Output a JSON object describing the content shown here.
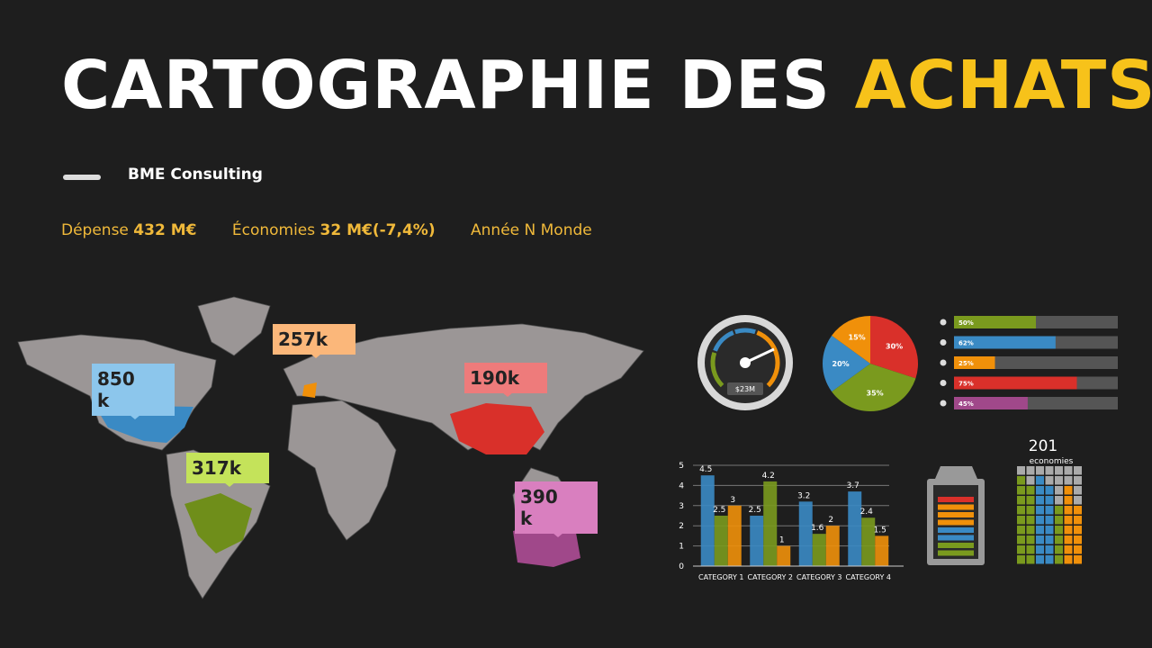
{
  "header": {
    "title_main": "CARTOGRAPHIE DES",
    "title_accent": "ACHATS",
    "company": "BME Consulting"
  },
  "kpis": [
    {
      "label": "Dépense",
      "value": "432 M€"
    },
    {
      "label": "Économies",
      "value": "32 M€(-7,4%)"
    },
    {
      "label": "Année N Monde"
    }
  ],
  "map": {
    "callouts": [
      {
        "label": "850 k",
        "color": "#8cc6ec"
      },
      {
        "label": "257k",
        "color": "#fbb77a"
      },
      {
        "label": "190k",
        "color": "#ee7b7b"
      },
      {
        "label": "317k",
        "color": "#c4e35a"
      },
      {
        "label": "390 k",
        "color": "#d97fbf"
      }
    ]
  },
  "gauge": {
    "label": "$23M"
  },
  "waffle": {
    "title": "201",
    "subtitle": "economies"
  },
  "chart_data": [
    {
      "type": "pie",
      "values": [
        30,
        35,
        20,
        15
      ],
      "value_labels": [
        "30%",
        "35%",
        "20%",
        "15%"
      ],
      "colors": [
        "#d9302a",
        "#7a9a1e",
        "#3a8ac4",
        "#f0900a"
      ]
    },
    {
      "type": "progress",
      "values": [
        50,
        62,
        25,
        75,
        45
      ],
      "value_labels": [
        "50%",
        "62%",
        "25%",
        "75%",
        "45%"
      ],
      "colors": [
        "#7a9a1e",
        "#3a8ac4",
        "#f0900a",
        "#d9302a",
        "#a0488a"
      ],
      "xlim": [
        0,
        100
      ]
    },
    {
      "type": "bar",
      "categories": [
        "CATEGORY 1",
        "CATEGORY 2",
        "CATEGORY 3",
        "CATEGORY 4"
      ],
      "series": [
        {
          "color": "#3a8ac4",
          "values": [
            4.5,
            2.5,
            3.2,
            3.7
          ]
        },
        {
          "color": "#7a9a1e",
          "values": [
            2.5,
            4.2,
            1.6,
            2.4
          ]
        },
        {
          "color": "#f0900a",
          "values": [
            3,
            1,
            2,
            1.5
          ]
        }
      ],
      "ylim": [
        0,
        5
      ],
      "yticks": [
        0,
        1,
        2,
        3,
        4,
        5
      ],
      "grid": true
    }
  ]
}
